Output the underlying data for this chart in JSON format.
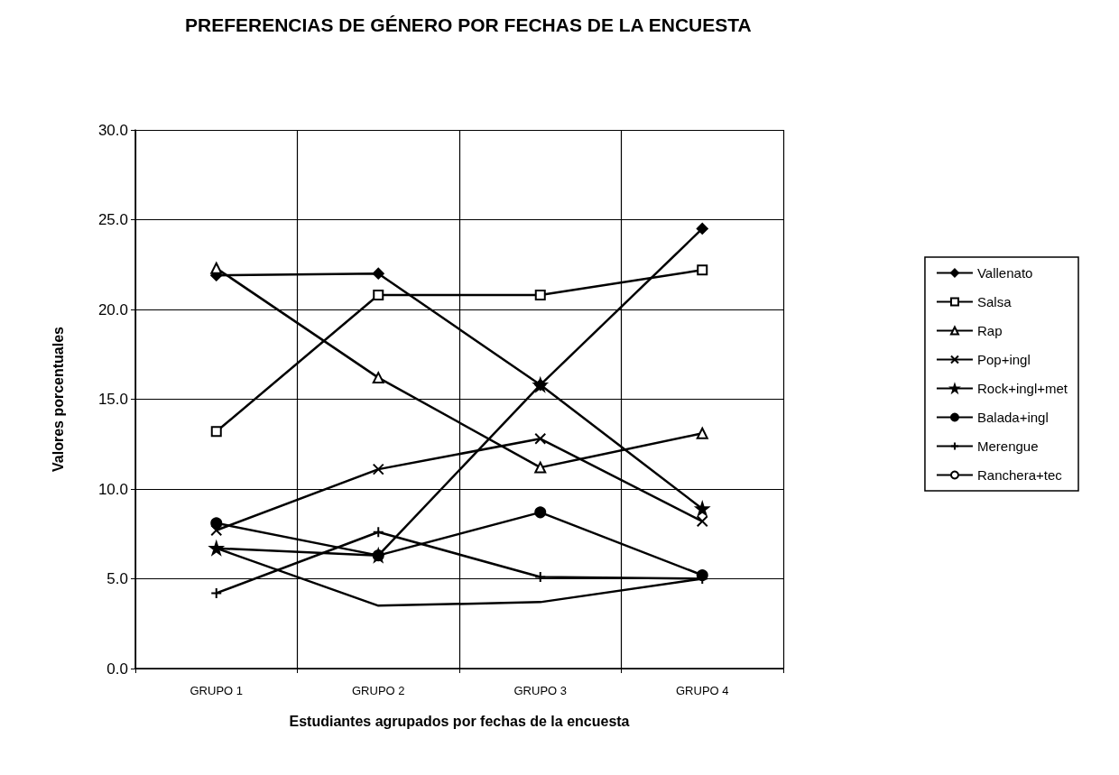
{
  "chart_data": {
    "type": "line",
    "title": "PREFERENCIAS DE GÉNERO POR FECHAS DE LA ENCUESTA",
    "xlabel": "Estudiantes agrupados por fechas de la encuesta",
    "ylabel": "Valores porcentuales",
    "categories": [
      "GRUPO 1",
      "GRUPO 2",
      "GRUPO 3",
      "GRUPO 4"
    ],
    "series": [
      {
        "name": "Vallenato",
        "color": "#000000",
        "marker": "diamond",
        "values": [
          21.9,
          22.0,
          15.8,
          24.5
        ]
      },
      {
        "name": "Salsa",
        "color": "#000000",
        "marker": "square",
        "values": [
          13.2,
          20.8,
          20.8,
          22.2
        ]
      },
      {
        "name": "Rap",
        "color": "#000000",
        "marker": "triangle",
        "values": [
          22.3,
          16.2,
          11.2,
          13.1
        ]
      },
      {
        "name": "Pop+ingl",
        "color": "#000000",
        "marker": "cross",
        "values": [
          7.7,
          11.1,
          12.8,
          8.2
        ]
      },
      {
        "name": "Rock+ingl+met",
        "color": "#000000",
        "marker": "star",
        "values": [
          6.7,
          6.3,
          15.8,
          8.9
        ]
      },
      {
        "name": "Balada+ingl",
        "color": "#000000",
        "marker": "circle",
        "values": [
          8.1,
          6.3,
          8.7,
          5.2
        ]
      },
      {
        "name": "Merengue",
        "color": "#000000",
        "marker": "plus",
        "values": [
          4.2,
          7.6,
          5.1,
          5.0
        ]
      },
      {
        "name": "Ranchera+tec",
        "color": "#000000",
        "marker": "none",
        "values": [
          6.7,
          3.5,
          3.7,
          5.0
        ]
      }
    ],
    "ylim": [
      0,
      30
    ],
    "yticks": [
      {
        "value": 0,
        "label": "0.0"
      },
      {
        "value": 5,
        "label": "5.0"
      },
      {
        "value": 10,
        "label": "10.0"
      },
      {
        "value": 15,
        "label": "15.0"
      },
      {
        "value": 20,
        "label": "20.0"
      },
      {
        "value": 25,
        "label": "25.0"
      },
      {
        "value": 30,
        "label": "30.0"
      }
    ],
    "grid": true,
    "legend": "right",
    "line_style": "solid"
  }
}
